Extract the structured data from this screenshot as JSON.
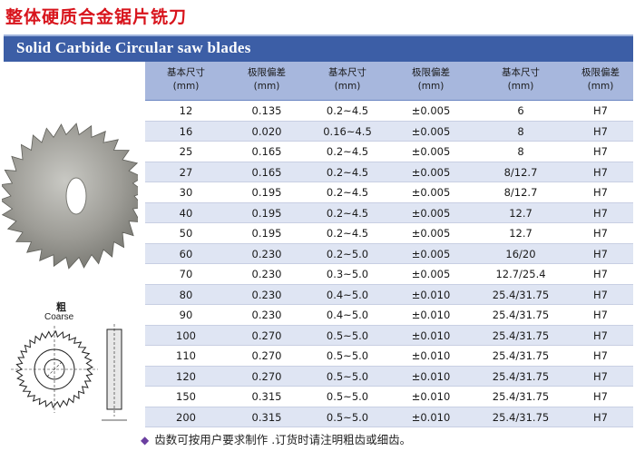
{
  "title_cn": "整体硬质合金锯片铣刀",
  "banner_title": "Solid Carbide Circular  saw blades",
  "table": {
    "headers": [
      {
        "cn": "基本尺寸",
        "unit": "(mm)"
      },
      {
        "cn": "极限偏差",
        "unit": "(mm)"
      },
      {
        "cn": "基本尺寸",
        "unit": "(mm)"
      },
      {
        "cn": "极限偏差",
        "unit": "(mm)"
      },
      {
        "cn": "基本尺寸",
        "unit": "(mm)"
      },
      {
        "cn": "极限偏差",
        "unit": "(mm)"
      }
    ],
    "rows": [
      [
        "12",
        "0.135",
        "0.2~4.5",
        "±0.005",
        "6",
        "H7"
      ],
      [
        "16",
        "0.020",
        "0.16~4.5",
        "±0.005",
        "8",
        "H7"
      ],
      [
        "25",
        "0.165",
        "0.2~4.5",
        "±0.005",
        "8",
        "H7"
      ],
      [
        "27",
        "0.165",
        "0.2~4.5",
        "±0.005",
        "8/12.7",
        "H7"
      ],
      [
        "30",
        "0.195",
        "0.2~4.5",
        "±0.005",
        "8/12.7",
        "H7"
      ],
      [
        "40",
        "0.195",
        "0.2~4.5",
        "±0.005",
        "12.7",
        "H7"
      ],
      [
        "50",
        "0.195",
        "0.2~4.5",
        "±0.005",
        "12.7",
        "H7"
      ],
      [
        "60",
        "0.230",
        "0.2~5.0",
        "±0.005",
        "16/20",
        "H7"
      ],
      [
        "70",
        "0.230",
        "0.3~5.0",
        "±0.005",
        "12.7/25.4",
        "H7"
      ],
      [
        "80",
        "0.230",
        "0.4~5.0",
        "±0.010",
        "25.4/31.75",
        "H7"
      ],
      [
        "90",
        "0.230",
        "0.4~5.0",
        "±0.010",
        "25.4/31.75",
        "H7"
      ],
      [
        "100",
        "0.270",
        "0.5~5.0",
        "±0.010",
        "25.4/31.75",
        "H7"
      ],
      [
        "110",
        "0.270",
        "0.5~5.0",
        "±0.010",
        "25.4/31.75",
        "H7"
      ],
      [
        "120",
        "0.270",
        "0.5~5.0",
        "±0.010",
        "25.4/31.75",
        "H7"
      ],
      [
        "150",
        "0.315",
        "0.5~5.0",
        "±0.010",
        "25.4/31.75",
        "H7"
      ],
      [
        "200",
        "0.315",
        "0.5~5.0",
        "±0.010",
        "25.4/31.75",
        "H7"
      ]
    ]
  },
  "diagram": {
    "label_cn": "粗",
    "label_en": "Coarse"
  },
  "note": "齿数可按用户要求制作 .订货时请注明粗齿或细齿。",
  "colors": {
    "title_red": "#d8141c",
    "banner_blue": "#3c5ea6",
    "header_blue": "#a7b7dd",
    "stripe": "#dfe5f3",
    "bullet_purple": "#6b3fa0"
  }
}
